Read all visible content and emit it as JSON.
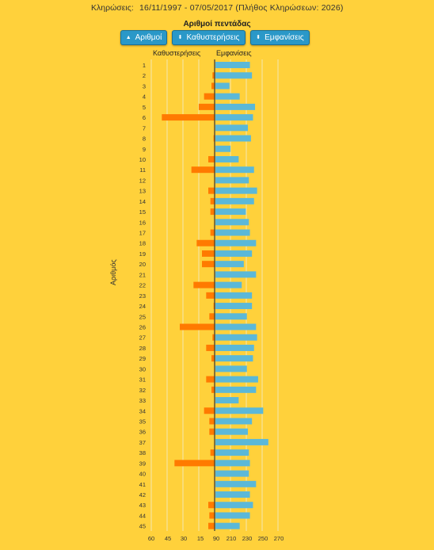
{
  "header": {
    "label": "Κληρώσεις:",
    "range": "16/11/1997 - 07/05/2017  (Πλήθος Κληρώσεων: 2026)"
  },
  "chart_title": "Αριθμοί πεντάδας",
  "buttons": [
    {
      "label": "Αριθμοί",
      "icon": "sort-up-icon",
      "glyph": "▲"
    },
    {
      "label": "Καθυστερήσεις",
      "icon": "sort-both-icon",
      "glyph": "⬍"
    },
    {
      "label": "Εμφανίσεις",
      "icon": "sort-both-icon",
      "glyph": "⬍"
    }
  ],
  "left_axis_label": "Καθυστερήσεις",
  "right_axis_label": "Εμφανίσεις",
  "y_axis_label": "Αριθμός",
  "colors": {
    "background": "#ffd13b",
    "delays": "#ff7a00",
    "appearances": "#5bb8d8",
    "button": "#2a98c8",
    "axis": "#333333",
    "grid": "#f3e6b0"
  },
  "chart_data": {
    "type": "bar",
    "orientation": "horizontal",
    "categories": [
      "1",
      "2",
      "3",
      "4",
      "5",
      "6",
      "7",
      "8",
      "9",
      "10",
      "11",
      "12",
      "13",
      "14",
      "15",
      "16",
      "17",
      "18",
      "19",
      "20",
      "21",
      "22",
      "23",
      "24",
      "25",
      "26",
      "27",
      "28",
      "29",
      "30",
      "31",
      "32",
      "33",
      "34",
      "35",
      "36",
      "37",
      "38",
      "39",
      "40",
      "41",
      "42",
      "43",
      "44",
      "45"
    ],
    "series": [
      {
        "name": "Καθυστερήσεις",
        "side": "left",
        "values": [
          0,
          2,
          3,
          10,
          15,
          50,
          0,
          1,
          0,
          6,
          22,
          0,
          6,
          4,
          4,
          0,
          4,
          17,
          12,
          12,
          0,
          20,
          8,
          1,
          5,
          33,
          2,
          8,
          3,
          0,
          8,
          3,
          0,
          10,
          5,
          5,
          0,
          4,
          38,
          0,
          0,
          0,
          6,
          5,
          6
        ]
      },
      {
        "name": "Εμφανίσεις",
        "side": "right",
        "values": [
          118,
          120,
          98,
          108,
          123,
          121,
          116,
          119,
          99,
          107,
          122,
          117,
          125,
          122,
          114,
          117,
          118,
          124,
          120,
          112,
          124,
          110,
          120,
          120,
          115,
          124,
          125,
          122,
          121,
          115,
          126,
          124,
          107,
          131,
          120,
          116,
          136,
          117,
          118,
          117,
          124,
          118,
          121,
          118,
          108
        ]
      }
    ],
    "x_ticks_left": [
      "60",
      "45",
      "30",
      "15"
    ],
    "x_ticks_right": [
      "90",
      "210",
      "230",
      "250",
      "270"
    ],
    "left_range": [
      0,
      60
    ],
    "right_ticks_values": [
      90,
      210,
      230,
      250,
      270
    ],
    "right_range": [
      90,
      270
    ],
    "grid": true
  }
}
